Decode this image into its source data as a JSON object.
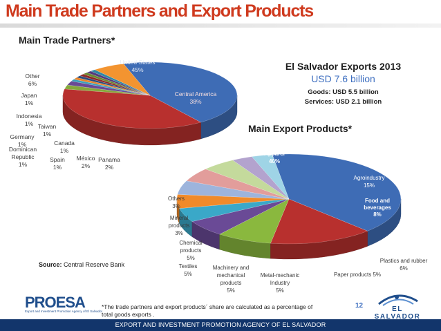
{
  "header": {
    "title": "Main Trade Partners and Export Products"
  },
  "sections": {
    "partners_title": "Main Trade Partners*",
    "products_title": "Main Export Products*"
  },
  "exports_box": {
    "title": "El Salvador Exports 2013",
    "total": "USD 7.6  billion",
    "goods": "Goods: USD 5.5 billion",
    "services": "Services: USD 2.1 billion"
  },
  "source": {
    "label": "Source:",
    "value": "Central Reserve Bank"
  },
  "footnote": "*The trade partners and export products´ share are calculated as a percentage of total goods exports .",
  "page_number": "12",
  "footer": "EXPORT AND INVESTMENT PROMOTION AGENCY OF EL SALVADOR",
  "logos": {
    "left": "PROESA",
    "left_tagline": "Export and Investment Promotion Agency of El Salvador",
    "right": "EL SALVADOR"
  },
  "chart_data": [
    {
      "type": "pie",
      "title": "Main Trade Partners*",
      "style": "3d",
      "slices": [
        {
          "label": "United States",
          "value": 45,
          "pct_label": "45%",
          "color": "#3e6cb5"
        },
        {
          "label": "Central America",
          "value": 38,
          "pct_label": "38%",
          "color": "#b8302e"
        },
        {
          "label": "Panama",
          "value": 2,
          "pct_label": "2%",
          "color": "#86a83c"
        },
        {
          "label": "México",
          "value": 2,
          "pct_label": "2%",
          "color": "#6a4a96"
        },
        {
          "label": "Spain",
          "value": 1,
          "pct_label": "1%",
          "color": "#3aa0bc"
        },
        {
          "label": "Canada",
          "value": 1,
          "pct_label": "1%",
          "color": "#e8842a"
        },
        {
          "label": "Dominican Republic",
          "value": 1,
          "pct_label": "1%",
          "color": "#284c7e"
        },
        {
          "label": "Germany",
          "value": 1,
          "pct_label": "1%",
          "color": "#8e2826"
        },
        {
          "label": "Taiwan",
          "value": 1,
          "pct_label": "1%",
          "color": "#6c8830"
        },
        {
          "label": "Indonesia",
          "value": 1,
          "pct_label": "1%",
          "color": "#553a7c"
        },
        {
          "label": "Japan",
          "value": 1,
          "pct_label": "1%",
          "color": "#2f88a6"
        },
        {
          "label": "Other",
          "value": 6,
          "pct_label": "6%",
          "color": "#f39430"
        }
      ]
    },
    {
      "type": "pie",
      "title": "Main Export Products*",
      "style": "3d",
      "slices": [
        {
          "label": "Apparel",
          "value": 40,
          "pct_label": "40%",
          "color": "#3e6cb5"
        },
        {
          "label": "Agroindustry",
          "value": 15,
          "pct_label": "15%",
          "color": "#b8302e"
        },
        {
          "label": "Food and beverages",
          "value": 8,
          "pct_label": "8%",
          "color": "#8ab83e"
        },
        {
          "label": "Plastics and rubber",
          "value": 6,
          "pct_label": "6%",
          "color": "#6a4a96"
        },
        {
          "label": "Paper products",
          "value": 5,
          "pct_label": "5%",
          "color": "#3aa8c8"
        },
        {
          "label": "Metal-mechanic Industry",
          "value": 5,
          "pct_label": "5%",
          "color": "#f08a2a"
        },
        {
          "label": "Machinery and mechanical products",
          "value": 5,
          "pct_label": "5%",
          "color": "#9db4dc"
        },
        {
          "label": "Textiles",
          "value": 5,
          "pct_label": "5%",
          "color": "#e29d9b"
        },
        {
          "label": "Chemical products",
          "value": 5,
          "pct_label": "5%",
          "color": "#c4da9c"
        },
        {
          "label": "Mineral products",
          "value": 3,
          "pct_label": "3%",
          "color": "#b3a3ce"
        },
        {
          "label": "Others",
          "value": 3,
          "pct_label": "3%",
          "color": "#9fd4e6"
        }
      ]
    }
  ]
}
